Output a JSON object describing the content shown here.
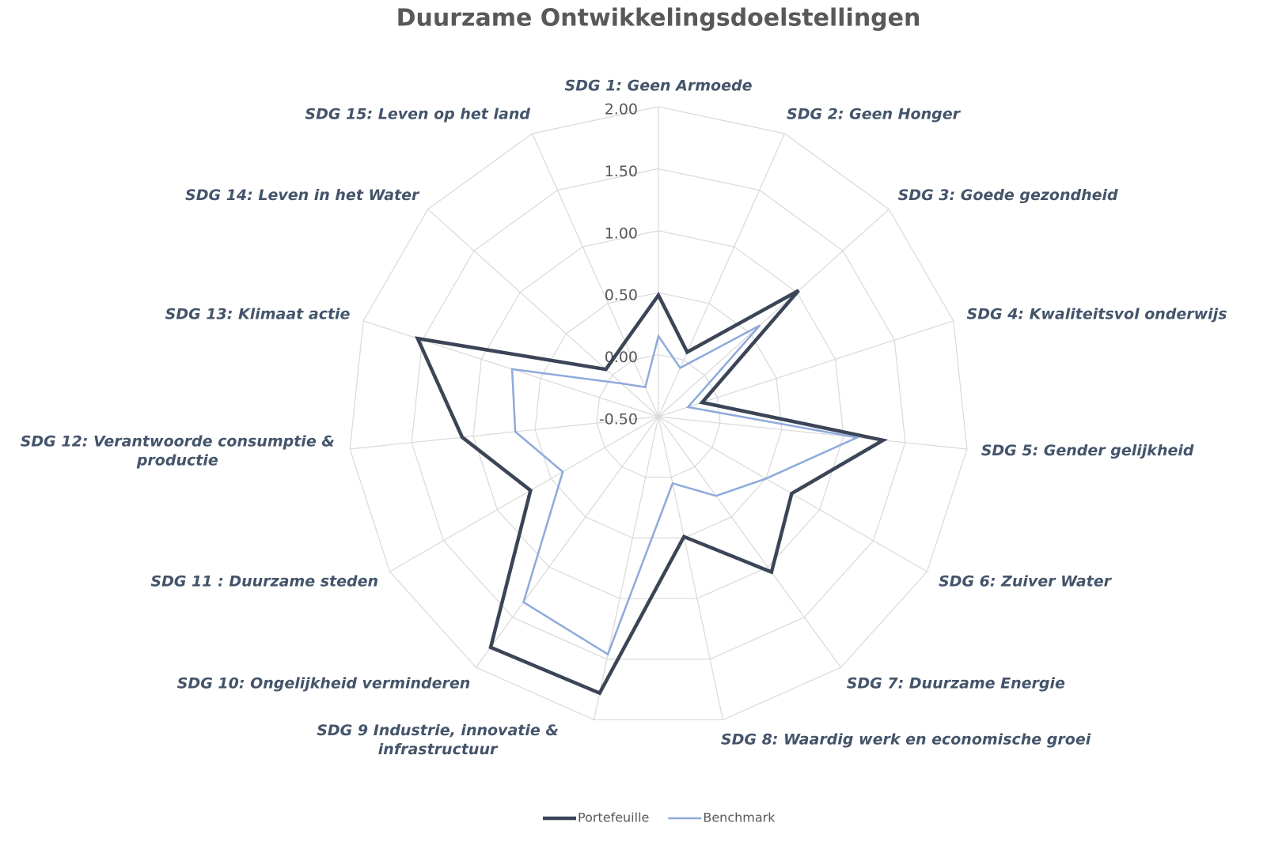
{
  "chart_data": {
    "type": "radar",
    "title": "Duurzame Ontwikkelingsdoelstellingen",
    "categories": [
      "SDG 1: Geen Armoede",
      "SDG 2: Geen Honger",
      "SDG 3: Goede gezondheid",
      "SDG 4: Kwaliteitsvol onderwijs",
      "SDG 5: Gender gelijkheid",
      "SDG 6: Zuiver Water",
      "SDG 7: Duurzame Energie",
      "SDG 8: Waardig werk en economische groei",
      "SDG 9 Industrie, innovatie & infrastructuur",
      "SDG 10: Ongelijkheid verminderen",
      "SDG 11 : Duurzame steden",
      "SDG 12: Verantwoorde consumptie & productie",
      "SDG 13: Klimaat actie",
      "SDG 14: Leven in het Water",
      "SDG 15: Leven op het land"
    ],
    "series": [
      {
        "name": "Portefeuille",
        "color": "#3b4557",
        "values": [
          0.48,
          0.07,
          1.02,
          -0.13,
          1.32,
          0.74,
          1.05,
          0.49,
          1.78,
          1.8,
          0.69,
          1.09,
          1.54,
          0.07,
          0.16
        ]
      },
      {
        "name": "Benchmark",
        "color": "#8eaadb",
        "values": [
          0.15,
          -0.07,
          0.6,
          -0.25,
          1.11,
          0.5,
          0.29,
          0.05,
          1.46,
          1.35,
          0.39,
          0.66,
          0.74,
          -0.1,
          -0.24
        ]
      }
    ],
    "ylim": [
      -0.5,
      2
    ],
    "yticks": [
      {
        "value": -0.5,
        "label": "-0.50"
      },
      {
        "value": 0,
        "label": "0.00"
      },
      {
        "value": 0.5,
        "label": "0.50"
      },
      {
        "value": 1,
        "label": "1.00"
      },
      {
        "value": 1.5,
        "label": "1.50"
      },
      {
        "value": 2,
        "label": "2.00"
      }
    ],
    "grid": true,
    "legend": "bottom"
  }
}
